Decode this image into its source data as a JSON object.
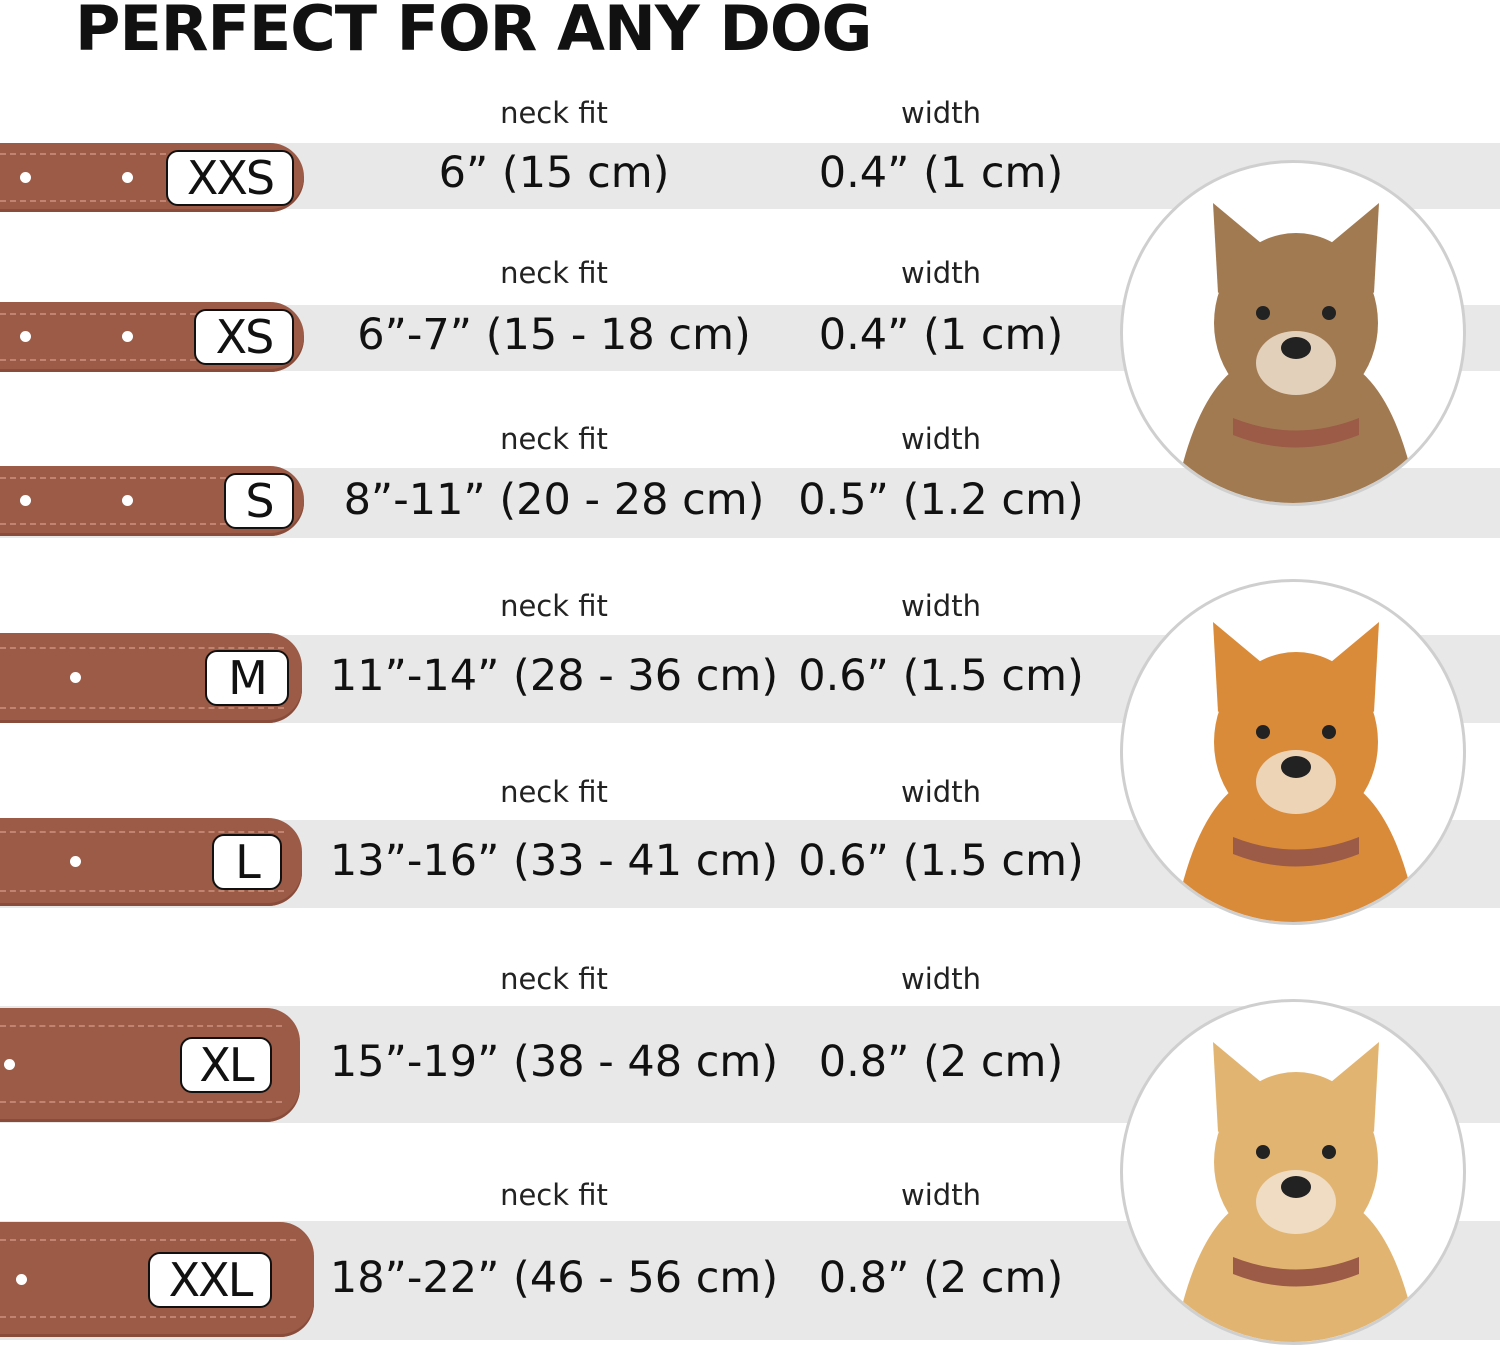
{
  "title": "PERFECT FOR ANY DOG",
  "colors": {
    "collar": "#9b5b46",
    "band": "#e8e8e8",
    "text": "#111111"
  },
  "rows": [
    {
      "size": "XXS",
      "neck_label": "neck fit",
      "neck": "6” (15 cm)",
      "width_label": "width",
      "width": "0.4” (1 cm)"
    },
    {
      "size": "XS",
      "neck_label": "neck fit",
      "neck": "6”-7” (15 - 18 cm)",
      "width_label": "width",
      "width": "0.4” (1 cm)"
    },
    {
      "size": "S",
      "neck_label": "neck fit",
      "neck": "8”-11” (20 - 28 cm)",
      "width_label": "width",
      "width": "0.5” (1.2 cm)"
    },
    {
      "size": "M",
      "neck_label": "neck fit",
      "neck": "11”-14” (28 - 36 cm)",
      "width_label": "width",
      "width": "0.6” (1.5 cm)"
    },
    {
      "size": "L",
      "neck_label": "neck fit",
      "neck": "13”-16” (33 - 41 cm)",
      "width_label": "width",
      "width": "0.6” (1.5 cm)"
    },
    {
      "size": "XL",
      "neck_label": "neck fit",
      "neck": "15”-19” (38 - 48 cm)",
      "width_label": "width",
      "width": "0.8” (2 cm)"
    },
    {
      "size": "XXL",
      "neck_label": "neck fit",
      "neck": "18”-22” (46 - 56 cm)",
      "width_label": "width",
      "width": "0.8” (2 cm)"
    }
  ],
  "dog_photos": [
    {
      "icon": "terrier-dog-photo",
      "fur": "#a27a52"
    },
    {
      "icon": "corgi-dog-photo",
      "fur": "#d98b3a"
    },
    {
      "icon": "labrador-dog-photo",
      "fur": "#e2b472"
    }
  ]
}
